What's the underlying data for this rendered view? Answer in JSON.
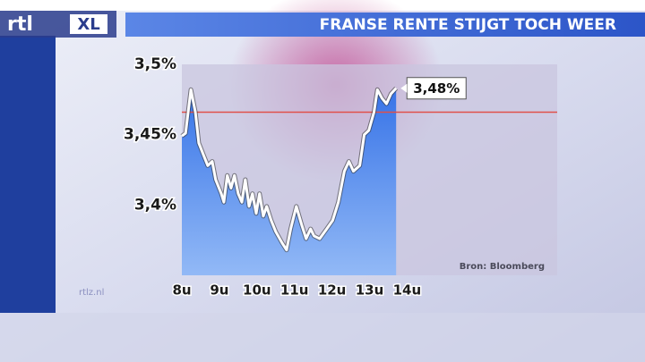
{
  "chart_data": {
    "type": "line",
    "title": "FRANSE RENTE STIJGT TOCH WEER",
    "logo": "rtl",
    "logo_suffix": "XL",
    "site": "rtlz.nl",
    "source": "Bron: Bloomberg",
    "xlim": [
      8,
      18
    ],
    "ylim": [
      3.35,
      3.5
    ],
    "xticks": [
      {
        "value": 8,
        "label": "8u"
      },
      {
        "value": 9,
        "label": "9u"
      },
      {
        "value": 10,
        "label": "10u"
      },
      {
        "value": 11,
        "label": "11u"
      },
      {
        "value": 12,
        "label": "12u"
      },
      {
        "value": 13,
        "label": "13u"
      },
      {
        "value": 14,
        "label": "14u"
      }
    ],
    "yticks": [
      {
        "value": 3.4,
        "label": "3,4%"
      },
      {
        "value": 3.45,
        "label": "3,45%"
      },
      {
        "value": 3.5,
        "label": "3,5%"
      }
    ],
    "reference_line": {
      "value": 3.466,
      "color": "#e0504a"
    },
    "x": [
      8.0,
      8.1,
      8.24,
      8.36,
      8.45,
      8.6,
      8.69,
      8.81,
      8.9,
      9.05,
      9.12,
      9.21,
      9.31,
      9.4,
      9.5,
      9.6,
      9.69,
      9.79,
      9.88,
      9.98,
      10.07,
      10.17,
      10.26,
      10.38,
      10.5,
      10.67,
      10.79,
      10.9,
      11.05,
      11.19,
      11.31,
      11.43,
      11.52,
      11.67,
      11.86,
      12.02,
      12.17,
      12.33,
      12.45,
      12.57,
      12.74,
      12.86,
      12.98,
      13.12,
      13.21,
      13.33,
      13.45,
      13.57,
      13.71
    ],
    "series": [
      {
        "color": "#4a8ff0",
        "values": [
          3.449,
          3.451,
          3.482,
          3.466,
          3.444,
          3.434,
          3.428,
          3.431,
          3.418,
          3.408,
          3.402,
          3.421,
          3.412,
          3.421,
          3.408,
          3.402,
          3.418,
          3.399,
          3.408,
          3.394,
          3.408,
          3.392,
          3.399,
          3.389,
          3.381,
          3.373,
          3.368,
          3.383,
          3.399,
          3.386,
          3.376,
          3.383,
          3.378,
          3.376,
          3.383,
          3.389,
          3.402,
          3.424,
          3.431,
          3.424,
          3.428,
          3.45,
          3.453,
          3.466,
          3.482,
          3.476,
          3.472,
          3.479,
          3.483
        ],
        "value_labels": [
          null,
          null,
          null,
          null,
          null,
          null,
          null,
          null,
          null,
          null,
          null,
          null,
          null,
          null,
          null,
          null,
          null,
          null,
          null,
          null,
          null,
          null,
          null,
          null,
          null,
          null,
          null,
          null,
          null,
          null,
          null,
          null,
          null,
          null,
          null,
          null,
          null,
          null,
          null,
          null,
          null,
          null,
          null,
          null,
          null,
          null,
          null,
          null,
          "3,48%"
        ]
      }
    ]
  }
}
